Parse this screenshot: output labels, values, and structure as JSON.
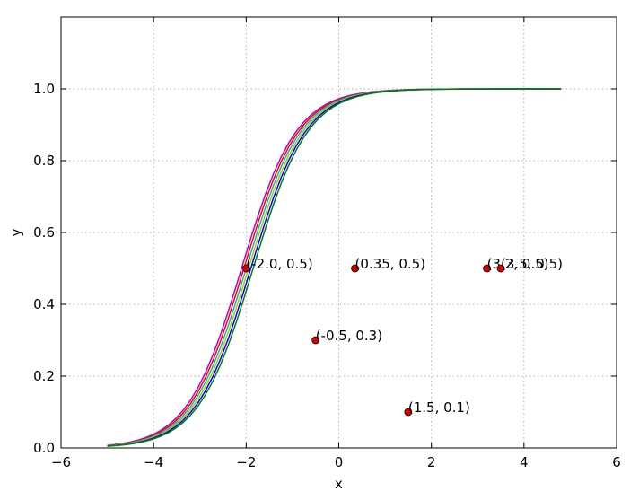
{
  "chart_data": {
    "type": "line",
    "title": "",
    "xlabel": "x",
    "ylabel": "y",
    "xlim": [
      -6,
      6
    ],
    "ylim": [
      0,
      1.2
    ],
    "xticks": [
      -6,
      -4,
      -2,
      0,
      2,
      4,
      6
    ],
    "yticks": [
      0.0,
      0.2,
      0.4,
      0.6,
      0.8,
      1.0
    ],
    "xtick_labels": [
      "−6",
      "−4",
      "−2",
      "0",
      "2",
      "4",
      "6"
    ],
    "ytick_labels": [
      "0.0",
      "0.2",
      "0.4",
      "0.6",
      "0.8",
      "1.0"
    ],
    "grid": true,
    "curve_x_range": [
      -5,
      4.8
    ],
    "series": [
      {
        "center": -2.1,
        "color": "#bf00bf"
      },
      {
        "center": -2.05,
        "color": "#ff0000"
      },
      {
        "center": -2.0,
        "color": "#00bfbf"
      },
      {
        "center": -1.95,
        "color": "#bfbf00"
      },
      {
        "center": -1.9,
        "color": "#0000ff"
      },
      {
        "center": -1.85,
        "color": "#008000"
      }
    ],
    "points": [
      {
        "x": -2.0,
        "y": 0.5,
        "label": "(-2.0, 0.5)"
      },
      {
        "x": 0.35,
        "y": 0.5,
        "label": "(0.35, 0.5)"
      },
      {
        "x": -0.5,
        "y": 0.3,
        "label": "(-0.5, 0.3)"
      },
      {
        "x": 1.5,
        "y": 0.1,
        "label": "(1.5, 0.1)"
      },
      {
        "x": 3.2,
        "y": 0.5,
        "label": "(3.2, 0.5)"
      },
      {
        "x": 3.5,
        "y": 0.5,
        "label": "(3.5, 0.5)"
      }
    ],
    "point_color": "#e00000"
  }
}
